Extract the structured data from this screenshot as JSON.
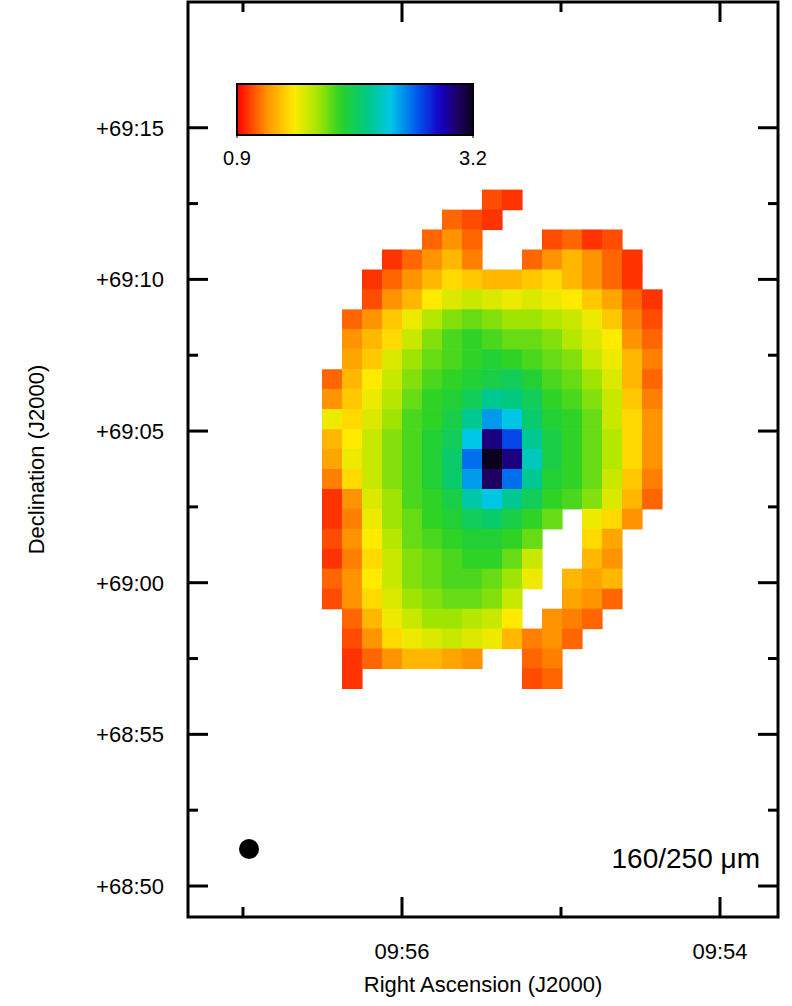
{
  "chart_data": {
    "type": "heatmap",
    "xlabel": "Right Ascension (J2000)",
    "ylabel": "Declination (J2000)",
    "annotation": "160/250 μm",
    "xlim": [
      597.3459,
      593.6352
    ],
    "ylim": [
      68.8163,
      69.3191
    ],
    "xticks": [
      {
        "value": 596,
        "label": "09:56"
      },
      {
        "value": 594,
        "label": "09:54"
      }
    ],
    "xminorticks": [
      597,
      595
    ],
    "yticks": [
      {
        "value": 69.25,
        "label": "+69:15"
      },
      {
        "value": 69.16667,
        "label": "+69:10"
      },
      {
        "value": 69.08333,
        "label": "+69:05"
      },
      {
        "value": 69.0,
        "label": "+69:00"
      },
      {
        "value": 68.91667,
        "label": "+68:55"
      },
      {
        "value": 68.83333,
        "label": "+68:50"
      }
    ],
    "yminorticks": [
      69.20833,
      69.125,
      69.04167,
      68.95833,
      68.875
    ],
    "x_edges": [
      596.5031,
      596.3774,
      596.2516,
      596.1258,
      596.0,
      595.8742,
      595.7484,
      595.6226,
      595.4969,
      595.3711,
      595.2453,
      595.1195,
      594.9937,
      594.8679,
      594.7421,
      594.6164,
      594.4906,
      594.3648
    ],
    "y_edges": [
      69.216,
      69.205,
      69.1941,
      69.1831,
      69.1721,
      69.1612,
      69.1502,
      69.1393,
      69.1283,
      69.1173,
      69.1064,
      69.0954,
      69.0844,
      69.0735,
      69.0625,
      69.0515,
      69.0406,
      69.0296,
      69.0186,
      69.0077,
      68.9967,
      68.9857,
      68.9748,
      68.9638,
      68.9529,
      68.9419
    ],
    "cells": [
      [
        null,
        null,
        null,
        null,
        null,
        null,
        null,
        null,
        1.05,
        1.0,
        null,
        null,
        null,
        null,
        null,
        null,
        null
      ],
      [
        null,
        null,
        null,
        null,
        null,
        null,
        1.1,
        1.05,
        1.0,
        null,
        null,
        null,
        null,
        null,
        null,
        null,
        null
      ],
      [
        null,
        null,
        null,
        null,
        null,
        1.1,
        1.2,
        1.1,
        null,
        null,
        null,
        1.05,
        1.1,
        1.0,
        1.05,
        null,
        null
      ],
      [
        null,
        null,
        null,
        1.0,
        1.1,
        1.2,
        1.3,
        1.15,
        null,
        null,
        1.1,
        1.2,
        1.3,
        1.2,
        1.1,
        1.0,
        null
      ],
      [
        null,
        null,
        1.0,
        1.1,
        1.2,
        1.3,
        1.4,
        1.35,
        1.3,
        1.3,
        1.35,
        1.4,
        1.3,
        1.2,
        1.1,
        1.0,
        null
      ],
      [
        null,
        null,
        1.05,
        1.2,
        1.3,
        1.45,
        1.55,
        1.6,
        1.55,
        1.5,
        1.55,
        1.5,
        1.45,
        1.35,
        1.25,
        1.1,
        1.0
      ],
      [
        null,
        1.1,
        1.2,
        1.35,
        1.5,
        1.65,
        1.75,
        1.8,
        1.75,
        1.7,
        1.7,
        1.65,
        1.6,
        1.5,
        1.35,
        1.15,
        1.05
      ],
      [
        null,
        1.2,
        1.3,
        1.4,
        1.6,
        1.75,
        1.85,
        1.9,
        1.85,
        1.8,
        1.8,
        1.75,
        1.65,
        1.55,
        1.45,
        1.2,
        1.1
      ],
      [
        null,
        1.25,
        1.35,
        1.55,
        1.7,
        1.8,
        1.85,
        1.9,
        1.95,
        1.9,
        1.85,
        1.8,
        1.75,
        1.6,
        1.5,
        1.3,
        1.15
      ],
      [
        1.1,
        1.3,
        1.45,
        1.6,
        1.75,
        1.85,
        1.9,
        1.95,
        2.0,
        2.05,
        1.95,
        1.85,
        1.8,
        1.7,
        1.55,
        1.3,
        1.1
      ],
      [
        1.2,
        1.35,
        1.5,
        1.65,
        1.8,
        1.9,
        1.95,
        2.05,
        2.2,
        2.15,
        2.05,
        1.9,
        1.85,
        1.75,
        1.6,
        1.35,
        1.15
      ],
      [
        1.5,
        1.4,
        1.55,
        1.7,
        1.85,
        1.9,
        2.0,
        2.2,
        2.5,
        2.4,
        2.1,
        1.95,
        1.9,
        1.8,
        1.6,
        1.4,
        1.2
      ],
      [
        1.3,
        1.45,
        1.6,
        1.75,
        1.85,
        1.95,
        2.05,
        2.4,
        3.0,
        2.7,
        2.2,
        2.0,
        1.9,
        1.8,
        1.65,
        1.4,
        1.2
      ],
      [
        1.25,
        1.5,
        1.6,
        1.75,
        1.85,
        1.95,
        2.1,
        2.6,
        3.2,
        3.0,
        2.3,
        2.0,
        1.9,
        1.8,
        1.65,
        1.4,
        1.2
      ],
      [
        1.15,
        1.4,
        1.6,
        1.75,
        1.85,
        1.95,
        2.1,
        2.5,
        3.05,
        2.6,
        2.2,
        1.95,
        1.9,
        1.8,
        1.6,
        1.35,
        1.15
      ],
      [
        1.0,
        1.2,
        1.55,
        1.7,
        1.85,
        1.9,
        2.0,
        2.25,
        2.4,
        2.2,
        2.05,
        1.9,
        1.85,
        1.75,
        1.55,
        1.3,
        1.1
      ],
      [
        1.0,
        1.15,
        1.5,
        1.7,
        1.8,
        1.9,
        1.95,
        2.05,
        2.1,
        2.0,
        1.9,
        1.8,
        null,
        1.5,
        1.4,
        1.2,
        null
      ],
      [
        1.05,
        1.2,
        1.45,
        1.65,
        1.8,
        1.85,
        1.9,
        1.95,
        1.95,
        1.9,
        1.8,
        null,
        null,
        1.4,
        1.25,
        null,
        null
      ],
      [
        1.0,
        1.15,
        1.4,
        1.6,
        1.75,
        1.8,
        1.85,
        1.9,
        1.9,
        1.8,
        1.6,
        null,
        null,
        1.3,
        1.2,
        null,
        null
      ],
      [
        1.1,
        1.2,
        1.45,
        1.6,
        1.75,
        1.8,
        1.85,
        1.85,
        1.8,
        1.7,
        1.5,
        null,
        1.3,
        1.25,
        1.3,
        null,
        null
      ],
      [
        1.05,
        1.2,
        1.4,
        1.55,
        1.7,
        1.75,
        1.8,
        1.8,
        1.75,
        1.6,
        null,
        null,
        1.25,
        1.2,
        1.1,
        null,
        null
      ],
      [
        null,
        1.1,
        1.3,
        1.5,
        1.6,
        1.7,
        1.7,
        1.65,
        1.6,
        1.45,
        null,
        1.2,
        1.15,
        1.1,
        null,
        null,
        null
      ],
      [
        null,
        1.05,
        1.2,
        1.4,
        1.5,
        1.55,
        1.6,
        1.55,
        1.5,
        1.3,
        1.15,
        1.2,
        1.1,
        null,
        null,
        null,
        null
      ],
      [
        null,
        1.0,
        1.1,
        1.2,
        1.3,
        1.3,
        1.25,
        1.2,
        null,
        null,
        1.1,
        1.15,
        null,
        null,
        null,
        null,
        null
      ],
      [
        null,
        1.0,
        null,
        null,
        null,
        null,
        null,
        null,
        null,
        null,
        1.05,
        1.1,
        null,
        null,
        null,
        null,
        null
      ]
    ],
    "colorbar": {
      "range": [
        0.9,
        3.2
      ],
      "ticks": [
        0.9,
        3.2
      ]
    }
  }
}
